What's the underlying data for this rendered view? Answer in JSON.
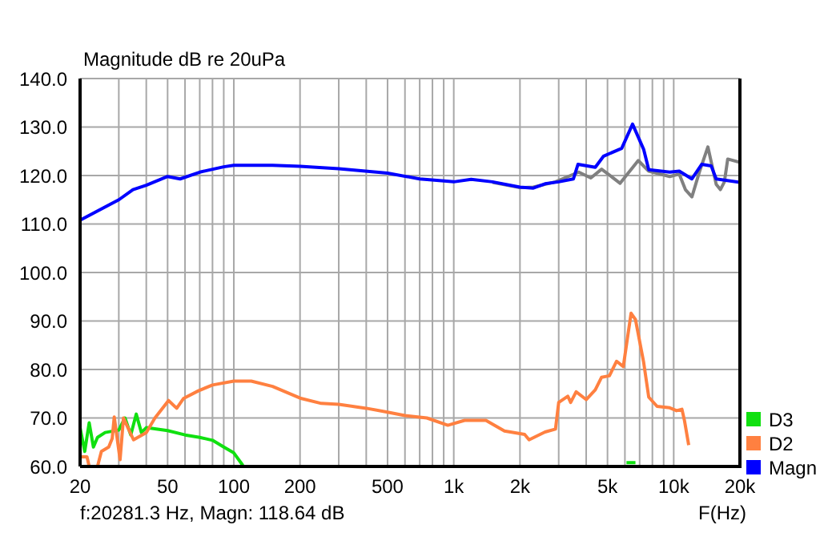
{
  "chart_data": {
    "type": "line",
    "ylabel": "Magnitude dB re 20uPa",
    "xlabel": "F(Hz)",
    "log": "x",
    "grid": true,
    "legend": "bottom right",
    "marker": "none",
    "line_style": "solid",
    "xlim": [
      20,
      20000
    ],
    "xticks": [
      20,
      {
        "value": 30,
        "label": null
      },
      {
        "value": 40,
        "label": null
      },
      50,
      {
        "value": 60,
        "label": null
      },
      {
        "value": 70,
        "label": null
      },
      {
        "value": 80,
        "label": null
      },
      {
        "value": 90,
        "label": null
      },
      100,
      200,
      {
        "value": 300,
        "label": null
      },
      {
        "value": 400,
        "label": null
      },
      500,
      {
        "value": 600,
        "label": null
      },
      {
        "value": 700,
        "label": null
      },
      {
        "value": 800,
        "label": null
      },
      {
        "value": 900,
        "label": null
      },
      {
        "value": 1000,
        "label": "1k"
      },
      {
        "value": 2000,
        "label": "2k"
      },
      {
        "value": 3000,
        "label": null
      },
      {
        "value": 4000,
        "label": null
      },
      {
        "value": 5000,
        "label": "5k"
      },
      {
        "value": 6000,
        "label": null
      },
      {
        "value": 7000,
        "label": null
      },
      {
        "value": 8000,
        "label": null
      },
      {
        "value": 9000,
        "label": null
      },
      {
        "value": 10000,
        "label": "10k"
      },
      {
        "value": 20000,
        "label": "20k"
      }
    ],
    "ylim": [
      60,
      140
    ],
    "yticks": [
      {
        "value": 60,
        "label": "60.0"
      },
      {
        "value": 70,
        "label": "70.0"
      },
      {
        "value": 80,
        "label": "80.0"
      },
      {
        "value": 90,
        "label": "90.0"
      },
      {
        "value": 100,
        "label": "100.0"
      },
      {
        "value": 110,
        "label": "110.0"
      },
      {
        "value": 120,
        "label": "120.0"
      },
      {
        "value": 130,
        "label": "130.0"
      },
      {
        "value": 140,
        "label": "140.0"
      }
    ],
    "annotations": [
      "f:20281.3 Hz, Magn: 118.64 dB"
    ],
    "series": [
      {
        "name": "D3",
        "color": "#10e010",
        "x": [
          20,
          21,
          22,
          23,
          24,
          26,
          30,
          32,
          34,
          36,
          38,
          40,
          50,
          60,
          70,
          80,
          90,
          100,
          110,
          1000,
          6100,
          6700
        ],
        "values": [
          68,
          63.1,
          69,
          64,
          66,
          67,
          67.5,
          70,
          66.5,
          70.8,
          67,
          68,
          67.4,
          66.5,
          66,
          65.4,
          64,
          62.8,
          60.2,
          null,
          60.8,
          60.8
        ]
      },
      {
        "name": "D2",
        "color": "#ff8040",
        "x": [
          20,
          21.5,
          22,
          24,
          25,
          27,
          28,
          28.6,
          30.4,
          31.5,
          33,
          35,
          40,
          43.8,
          50.5,
          55,
          59,
          69,
          80,
          100,
          120,
          150,
          200,
          250,
          300,
          400,
          500,
          600,
          755,
          940,
          1120,
          1400,
          1700,
          2100,
          2200,
          2600,
          2900,
          3000,
          3300,
          3400,
          3600,
          4000,
          4400,
          4700,
          5100,
          5500,
          5900,
          6400,
          6700,
          7300,
          7700,
          8400,
          9600,
          10300,
          10900,
          11200,
          11700
        ],
        "values": [
          62,
          62,
          60,
          60,
          63.1,
          64,
          65.8,
          70.2,
          61.4,
          70,
          68,
          65.5,
          67,
          70,
          73.6,
          72,
          74,
          75.6,
          76.8,
          77.6,
          77.6,
          76.5,
          74.1,
          73,
          72.8,
          72,
          71.2,
          70.5,
          70,
          68.5,
          69.5,
          69.5,
          67.3,
          66.6,
          65.5,
          67.1,
          67.7,
          73.2,
          74.5,
          73.2,
          75.4,
          73.8,
          75.8,
          78.4,
          78.7,
          81.7,
          80.6,
          91.6,
          90.3,
          81.5,
          74.3,
          72.4,
          72.1,
          71.5,
          71.8,
          69.4,
          64.4
        ]
      },
      {
        "color": "#808080",
        "x": [
          1500,
          2000,
          2300,
          2900,
          3700,
          4200,
          4700,
          5100,
          5700,
          6900,
          7700,
          9600,
          10600,
          11300,
          12100,
          13100,
          14300,
          15600,
          16300,
          17000,
          17600,
          20000
        ],
        "values": [
          118.6,
          117.5,
          117.6,
          118.7,
          120.7,
          119.5,
          121.3,
          120.1,
          118.4,
          123.1,
          120.9,
          119.8,
          120.3,
          117.1,
          115.6,
          120.8,
          125.9,
          118.2,
          117.1,
          118.7,
          123.4,
          122.7
        ]
      },
      {
        "name": "Magn",
        "color": "#0000ff",
        "x": [
          20,
          30,
          34.8,
          40,
          50,
          57,
          70,
          90,
          100,
          150,
          200,
          300,
          500,
          700,
          1000,
          1200,
          1500,
          2000,
          2300,
          2600,
          3000,
          3500,
          3670,
          4400,
          4800,
          5800,
          6500,
          7300,
          7700,
          9600,
          10600,
          12100,
          13400,
          14800,
          15600,
          20000
        ],
        "values": [
          110.8,
          115,
          117.1,
          118,
          119.8,
          119.3,
          120.7,
          121.8,
          122.1,
          122.1,
          121.9,
          121.4,
          120.5,
          119.3,
          118.7,
          119.2,
          118.7,
          117.6,
          117.4,
          118.3,
          118.7,
          119.3,
          122.3,
          121.7,
          124,
          125.6,
          130.6,
          125.4,
          121.2,
          120.7,
          120.9,
          119.3,
          122.3,
          122,
          119.3,
          118.6
        ]
      }
    ]
  }
}
